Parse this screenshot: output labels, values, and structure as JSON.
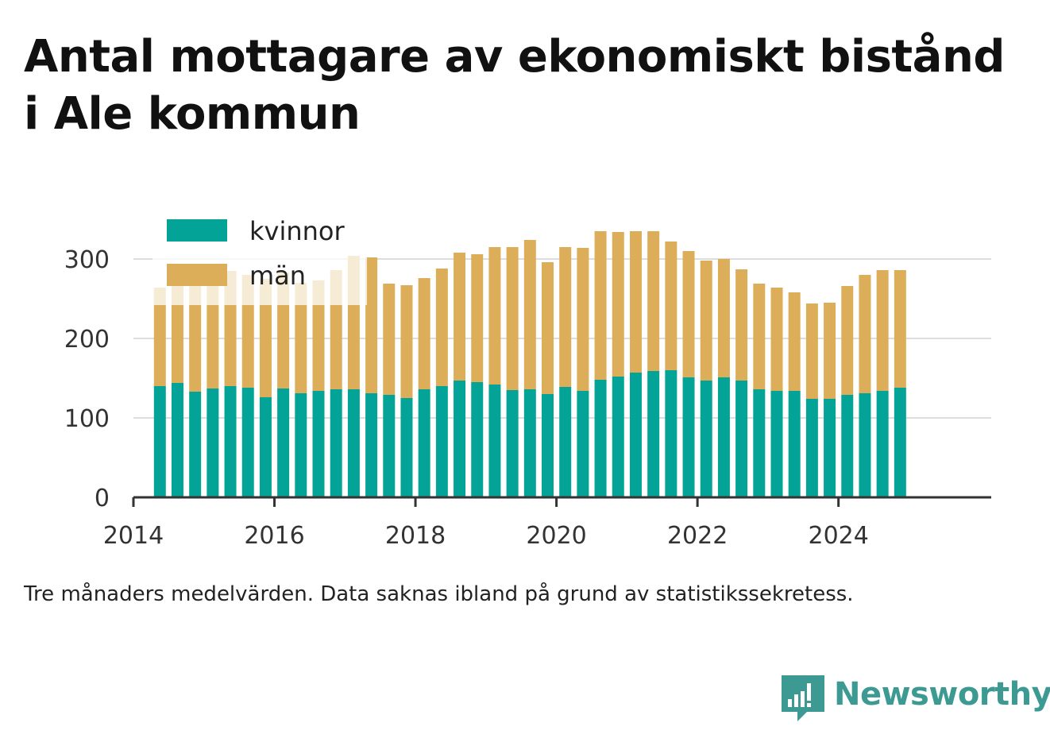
{
  "chart_data": {
    "type": "bar",
    "stacked": true,
    "title": "Antal mottagare av ekonomiskt bistånd i Ale kommun",
    "caption": "Tre månaders medelvärden. Data saknas ibland på grund av statistikssekretess.",
    "xlabel": "",
    "ylabel": "",
    "x": [
      "2014-05",
      "2014-08",
      "2014-11",
      "2015-02",
      "2015-05",
      "2015-08",
      "2015-11",
      "2016-02",
      "2016-05",
      "2016-08",
      "2016-11",
      "2017-02",
      "2017-05",
      "2017-08",
      "2017-11",
      "2018-02",
      "2018-05",
      "2018-08",
      "2018-11",
      "2019-02",
      "2019-05",
      "2019-08",
      "2019-11",
      "2020-02",
      "2020-05",
      "2020-08",
      "2020-11",
      "2021-02",
      "2021-05",
      "2021-08",
      "2021-11",
      "2022-02",
      "2022-05",
      "2022-08",
      "2022-11",
      "2023-02",
      "2023-05",
      "2023-08",
      "2023-11",
      "2024-02",
      "2024-05",
      "2024-08",
      "2024-11"
    ],
    "series": [
      {
        "name": "kvinnor",
        "color": "#03a497",
        "values": [
          140,
          144,
          133,
          137,
          140,
          138,
          126,
          137,
          131,
          134,
          136,
          136,
          131,
          129,
          125,
          136,
          140,
          147,
          145,
          142,
          135,
          136,
          130,
          139,
          134,
          148,
          152,
          157,
          159,
          160,
          151,
          147,
          151,
          147,
          136,
          134,
          134,
          124,
          124,
          129,
          131,
          134,
          138
        ]
      },
      {
        "name": "män",
        "color": "#dcae5a",
        "values": [
          124,
          130,
          140,
          149,
          145,
          142,
          149,
          146,
          139,
          139,
          150,
          168,
          171,
          140,
          142,
          140,
          148,
          161,
          161,
          173,
          180,
          188,
          166,
          176,
          180,
          187,
          182,
          178,
          176,
          162,
          159,
          151,
          149,
          140,
          133,
          130,
          124,
          120,
          121,
          137,
          149,
          152,
          148
        ]
      }
    ],
    "ylim": [
      0,
      340
    ],
    "yticks": [
      0,
      100,
      200,
      300
    ],
    "xticks": [
      {
        "value": "2014-01",
        "label": "2014"
      },
      {
        "value": "2016-01",
        "label": "2016"
      },
      {
        "value": "2018-01",
        "label": "2018"
      },
      {
        "value": "2020-01",
        "label": "2020"
      },
      {
        "value": "2022-01",
        "label": "2022"
      },
      {
        "value": "2024-01",
        "label": "2024"
      }
    ],
    "xlim": [
      "2014-01",
      "2026-03"
    ],
    "grid": "horizontal",
    "legend": "top-left"
  },
  "brand": {
    "name": "Newsworthy",
    "color": "#3d9a92"
  }
}
